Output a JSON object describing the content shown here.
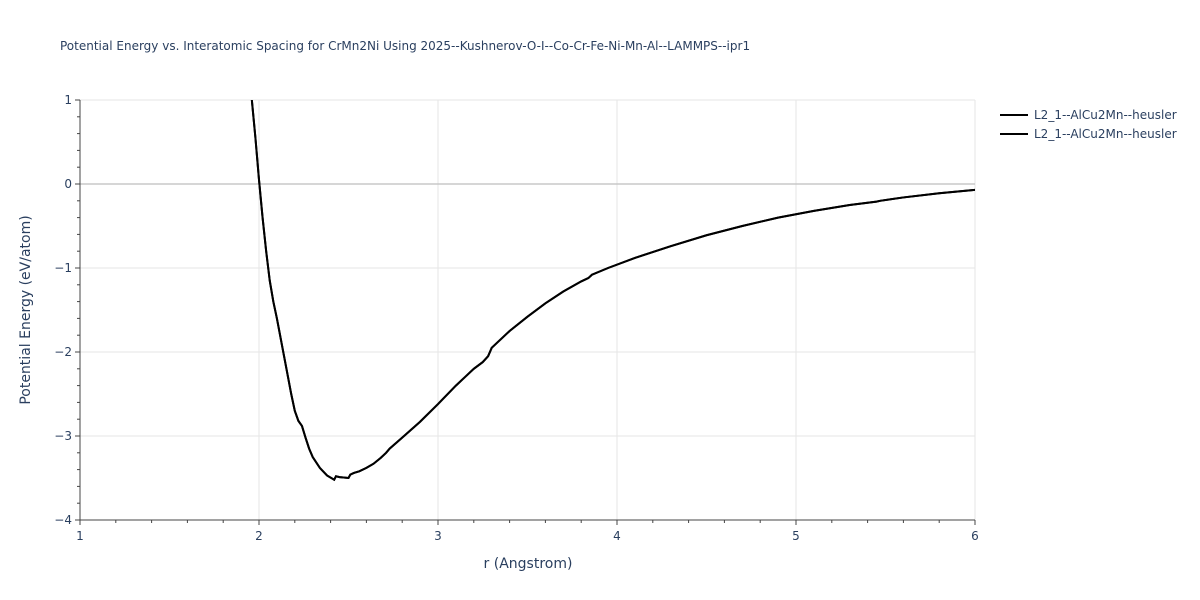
{
  "chart_data": {
    "type": "line",
    "title": "Potential Energy vs. Interatomic Spacing for CrMn2Ni Using 2025--Kushnerov-O-I--Co-Cr-Fe-Ni-Mn-Al--LAMMPS--ipr1",
    "xlabel": "r (Angstrom)",
    "ylabel": "Potential Energy (eV/atom)",
    "xlim": [
      1,
      6
    ],
    "ylim": [
      -4,
      1
    ],
    "x_ticks": [
      1,
      2,
      3,
      4,
      5,
      6
    ],
    "y_ticks": [
      -4,
      -3,
      -2,
      -1,
      0,
      1
    ],
    "grid": true,
    "legend_position": "top-right",
    "line_color": "#000000",
    "series": [
      {
        "name": "L2_1--AlCu2Mn--heusler",
        "x": [
          1.96,
          1.98,
          2.0,
          2.02,
          2.04,
          2.06,
          2.08,
          2.1,
          2.14,
          2.18,
          2.2,
          2.22,
          2.24,
          2.26,
          2.28,
          2.3,
          2.34,
          2.38,
          2.42,
          2.43,
          2.45,
          2.5,
          2.51,
          2.53,
          2.56,
          2.6,
          2.64,
          2.68,
          2.71,
          2.73,
          2.8,
          2.9,
          3.0,
          3.1,
          3.15,
          3.2,
          3.25,
          3.28,
          3.3,
          3.4,
          3.5,
          3.6,
          3.7,
          3.8,
          3.84,
          3.86,
          3.95,
          4.1,
          4.3,
          4.5,
          4.7,
          4.9,
          5.1,
          5.3,
          5.45,
          5.47,
          5.6,
          5.8,
          6.0
        ],
        "y": [
          1.0,
          0.55,
          0.05,
          -0.4,
          -0.8,
          -1.15,
          -1.4,
          -1.6,
          -2.05,
          -2.5,
          -2.7,
          -2.82,
          -2.88,
          -3.02,
          -3.15,
          -3.25,
          -3.38,
          -3.47,
          -3.52,
          -3.48,
          -3.49,
          -3.5,
          -3.46,
          -3.44,
          -3.42,
          -3.38,
          -3.33,
          -3.26,
          -3.2,
          -3.15,
          -3.02,
          -2.83,
          -2.62,
          -2.4,
          -2.3,
          -2.2,
          -2.12,
          -2.05,
          -1.95,
          -1.75,
          -1.58,
          -1.42,
          -1.28,
          -1.16,
          -1.12,
          -1.08,
          -1.0,
          -0.88,
          -0.74,
          -0.61,
          -0.5,
          -0.4,
          -0.32,
          -0.25,
          -0.21,
          -0.2,
          -0.16,
          -0.11,
          -0.07
        ]
      },
      {
        "name": "L2_1--AlCu2Mn--heusler",
        "x": [
          1.96,
          1.98,
          2.0,
          2.02,
          2.04,
          2.06,
          2.08,
          2.1,
          2.14,
          2.18,
          2.2,
          2.22,
          2.24,
          2.26,
          2.28,
          2.3,
          2.34,
          2.38,
          2.42,
          2.43,
          2.45,
          2.5,
          2.51,
          2.53,
          2.56,
          2.6,
          2.64,
          2.68,
          2.71,
          2.73,
          2.8,
          2.9,
          3.0,
          3.1,
          3.15,
          3.2,
          3.25,
          3.28,
          3.3,
          3.4,
          3.5,
          3.6,
          3.7,
          3.8,
          3.84,
          3.86,
          3.95,
          4.1,
          4.3,
          4.5,
          4.7,
          4.9,
          5.1,
          5.3,
          5.45,
          5.47,
          5.6,
          5.8,
          6.0
        ],
        "y": [
          1.0,
          0.55,
          0.05,
          -0.4,
          -0.8,
          -1.15,
          -1.4,
          -1.6,
          -2.05,
          -2.5,
          -2.7,
          -2.82,
          -2.88,
          -3.02,
          -3.15,
          -3.25,
          -3.38,
          -3.47,
          -3.52,
          -3.48,
          -3.49,
          -3.5,
          -3.46,
          -3.44,
          -3.42,
          -3.38,
          -3.33,
          -3.26,
          -3.2,
          -3.15,
          -3.02,
          -2.83,
          -2.62,
          -2.4,
          -2.3,
          -2.2,
          -2.12,
          -2.05,
          -1.95,
          -1.75,
          -1.58,
          -1.42,
          -1.28,
          -1.16,
          -1.12,
          -1.08,
          -1.0,
          -0.88,
          -0.74,
          -0.61,
          -0.5,
          -0.4,
          -0.32,
          -0.25,
          -0.21,
          -0.2,
          -0.16,
          -0.11,
          -0.07
        ]
      }
    ]
  }
}
